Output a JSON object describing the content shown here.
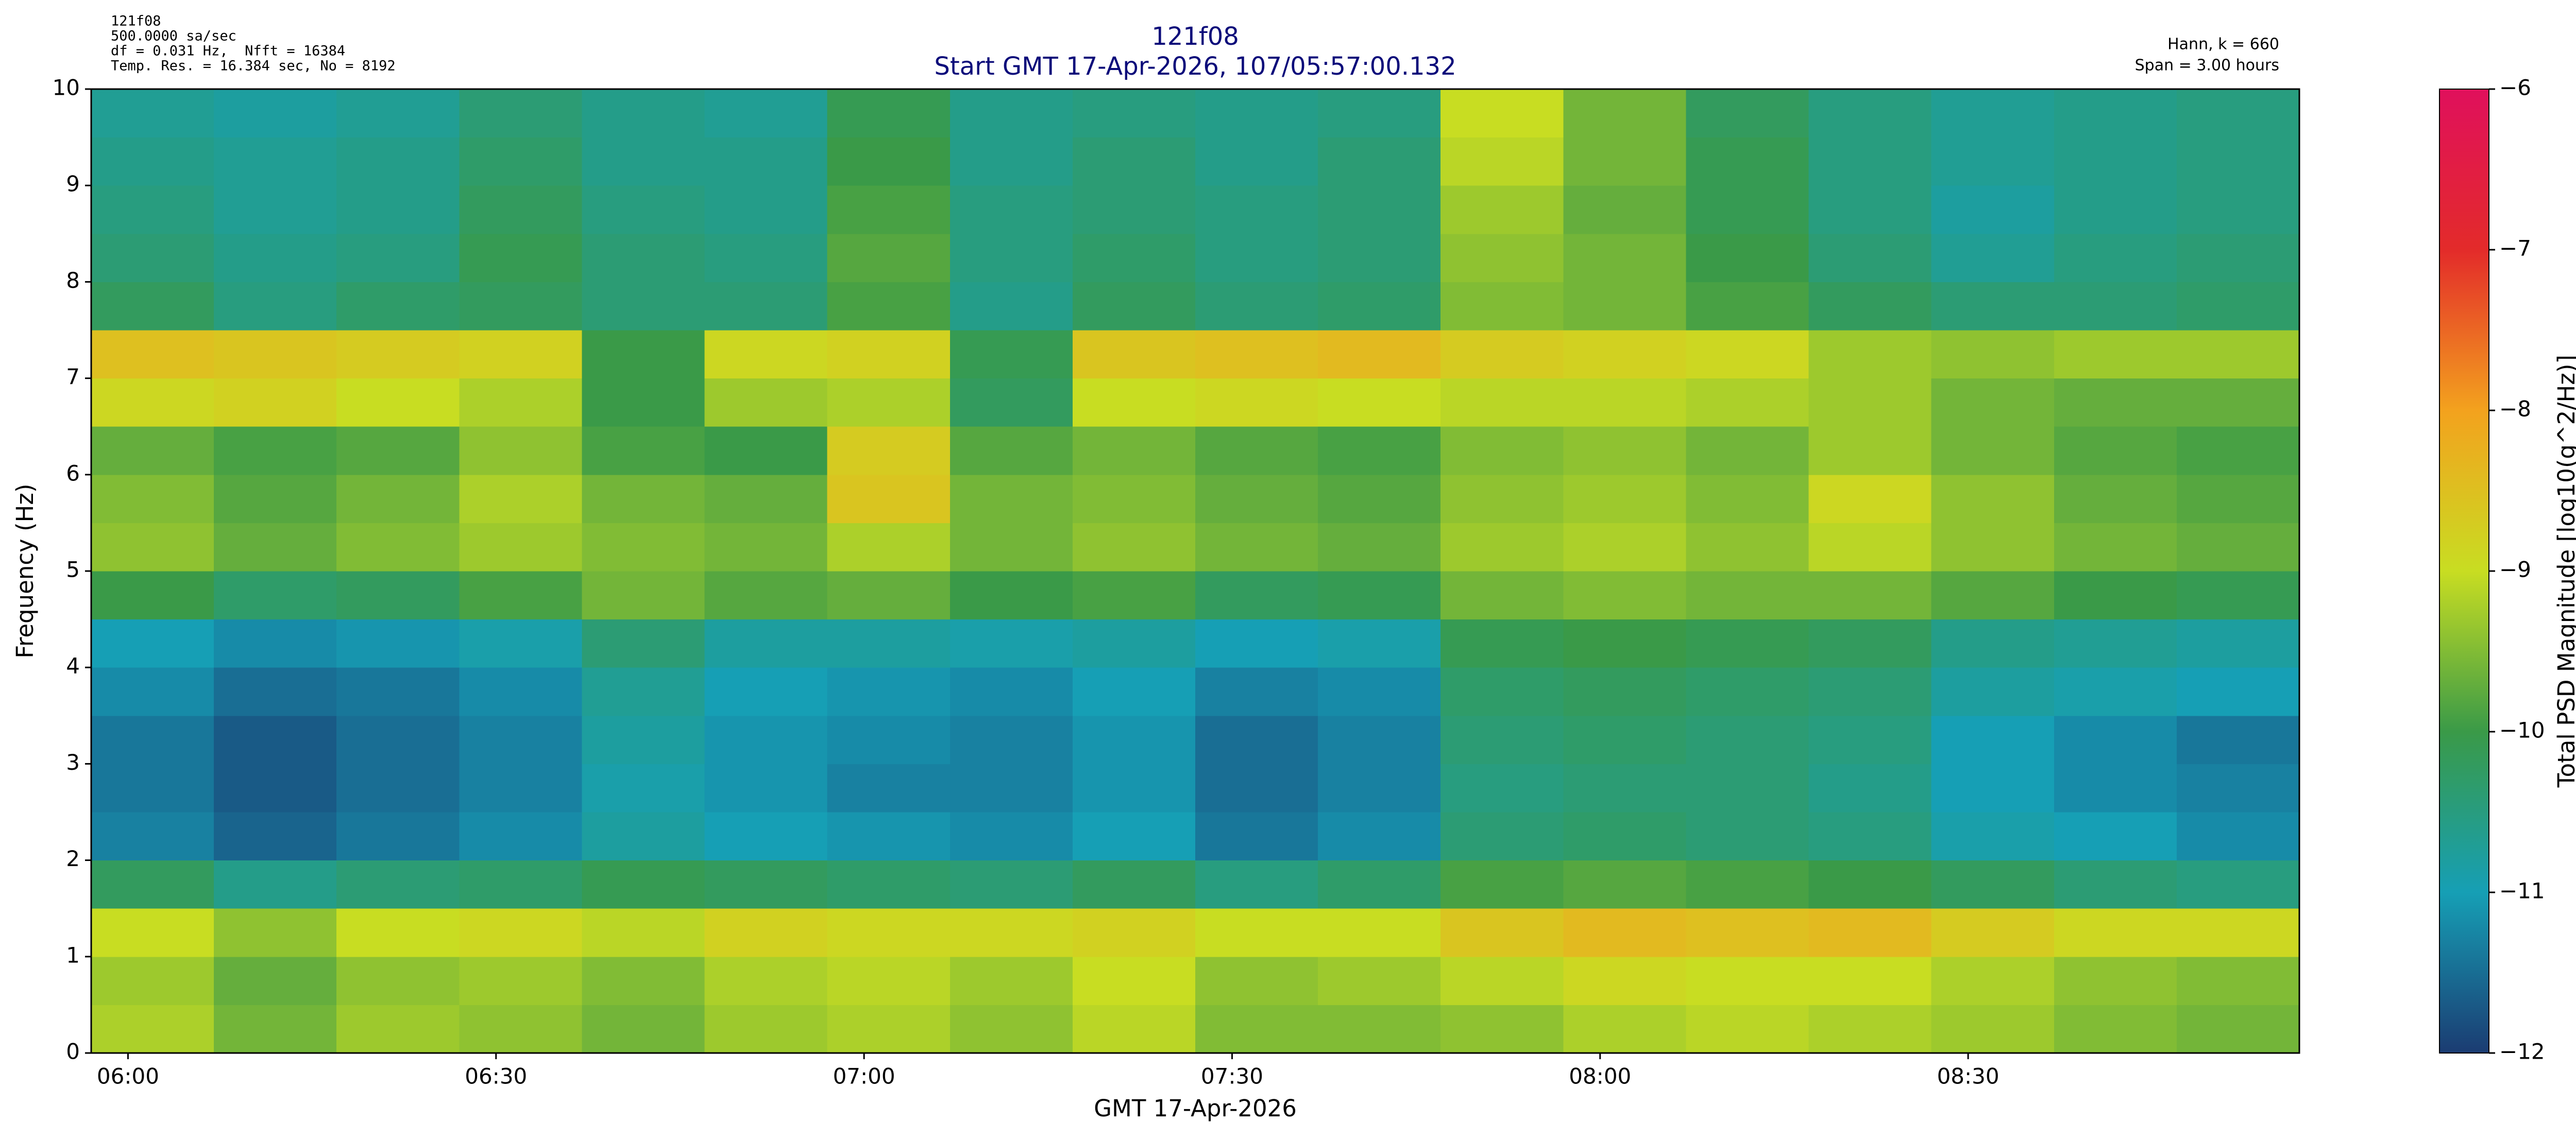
{
  "chart_data": {
    "type": "heatmap",
    "title": "121f08",
    "subtitle": "Start GMT 17-Apr-2026, 107/05:57:00.132",
    "info_left": [
      "121f08",
      "500.0000 sa/sec",
      "df = 0.031 Hz,  Nfft = 16384",
      "Temp. Res. = 16.384 sec, No = 8192"
    ],
    "info_right": [
      "Hann, k = 660",
      "Span = 3.00 hours"
    ],
    "x_label": "GMT 17-Apr-2026",
    "y_label": "Frequency (Hz)",
    "colorbar_label": "Total PSD Magnitude [log10(g^2/Hz)]",
    "xlim": [
      0,
      180
    ],
    "xticks": [
      {
        "value": 3,
        "label": "06:00"
      },
      {
        "value": 33,
        "label": "06:30"
      },
      {
        "value": 63,
        "label": "07:00"
      },
      {
        "value": 93,
        "label": "07:30"
      },
      {
        "value": 123,
        "label": "08:00"
      },
      {
        "value": 153,
        "label": "08:30"
      }
    ],
    "ylim": [
      0,
      10
    ],
    "yticks": [
      0,
      1,
      2,
      3,
      4,
      5,
      6,
      7,
      8,
      9,
      10
    ],
    "clim": [
      -12,
      -6
    ],
    "cticks": [
      {
        "value": -12,
        "label": "−12"
      },
      {
        "value": -11,
        "label": "−11"
      },
      {
        "value": -10,
        "label": "−10"
      },
      {
        "value": -9,
        "label": "−9"
      },
      {
        "value": -8,
        "label": "−8"
      },
      {
        "value": -7,
        "label": "−7"
      },
      {
        "value": -6,
        "label": "−6"
      }
    ],
    "colormap": [
      "#1b3c72",
      "#169fb5",
      "#3a9a48",
      "#c8dd22",
      "#f3a21e",
      "#e32b2a",
      "#e0105c"
    ],
    "x": [
      5,
      15,
      25,
      35,
      45,
      55,
      65,
      75,
      85,
      95,
      105,
      115,
      125,
      135,
      145,
      155,
      165,
      175
    ],
    "y": [
      0.25,
      0.75,
      1.25,
      1.75,
      2.25,
      2.75,
      3.25,
      3.75,
      4.25,
      4.75,
      5.25,
      5.75,
      6.25,
      6.75,
      7.25,
      7.75,
      8.25,
      8.75,
      9.25,
      9.75
    ],
    "values": [
      [
        -9.2,
        -9.6,
        -9.3,
        -9.4,
        -9.6,
        -9.3,
        -9.2,
        -9.4,
        -9.1,
        -9.5,
        -9.5,
        -9.4,
        -9.2,
        -9.1,
        -9.2,
        -9.3,
        -9.5,
        -9.6
      ],
      [
        -9.3,
        -9.7,
        -9.4,
        -9.3,
        -9.5,
        -9.2,
        -9.1,
        -9.3,
        -9.0,
        -9.4,
        -9.3,
        -9.1,
        -8.9,
        -9.0,
        -9.0,
        -9.2,
        -9.4,
        -9.5
      ],
      [
        -9.0,
        -9.4,
        -9.0,
        -8.9,
        -9.1,
        -8.8,
        -8.9,
        -8.9,
        -8.8,
        -9.0,
        -9.0,
        -8.6,
        -8.4,
        -8.5,
        -8.4,
        -8.7,
        -8.9,
        -8.9
      ],
      [
        -10.2,
        -10.6,
        -10.4,
        -10.3,
        -10.1,
        -10.2,
        -10.3,
        -10.4,
        -10.2,
        -10.5,
        -10.3,
        -9.9,
        -9.8,
        -9.9,
        -10.0,
        -10.2,
        -10.4,
        -10.5
      ],
      [
        -11.3,
        -11.6,
        -11.4,
        -11.2,
        -10.8,
        -11.0,
        -11.1,
        -11.2,
        -11.0,
        -11.4,
        -11.2,
        -10.4,
        -10.3,
        -10.4,
        -10.5,
        -10.9,
        -11.0,
        -11.2
      ],
      [
        -11.4,
        -11.7,
        -11.5,
        -11.3,
        -10.9,
        -11.1,
        -11.3,
        -11.3,
        -11.1,
        -11.5,
        -11.3,
        -10.5,
        -10.4,
        -10.4,
        -10.6,
        -11.0,
        -11.2,
        -11.3
      ],
      [
        -11.4,
        -11.7,
        -11.5,
        -11.3,
        -10.8,
        -11.1,
        -11.2,
        -11.3,
        -11.1,
        -11.5,
        -11.3,
        -10.4,
        -10.3,
        -10.4,
        -10.5,
        -11.0,
        -11.2,
        -11.4
      ],
      [
        -11.2,
        -11.5,
        -11.4,
        -11.2,
        -10.7,
        -11.0,
        -11.1,
        -11.2,
        -11.0,
        -11.3,
        -11.2,
        -10.3,
        -10.2,
        -10.3,
        -10.4,
        -10.8,
        -10.9,
        -11.0
      ],
      [
        -11.0,
        -11.2,
        -11.1,
        -10.9,
        -10.4,
        -10.8,
        -10.8,
        -10.9,
        -10.8,
        -11.0,
        -10.9,
        -10.1,
        -10.0,
        -10.1,
        -10.2,
        -10.6,
        -10.7,
        -10.8
      ],
      [
        -10.0,
        -10.3,
        -10.2,
        -9.9,
        -9.6,
        -9.8,
        -9.7,
        -10.0,
        -9.9,
        -10.2,
        -10.1,
        -9.6,
        -9.5,
        -9.6,
        -9.6,
        -9.8,
        -10.0,
        -10.1
      ],
      [
        -9.4,
        -9.7,
        -9.5,
        -9.3,
        -9.5,
        -9.6,
        -9.2,
        -9.6,
        -9.4,
        -9.6,
        -9.7,
        -9.3,
        -9.2,
        -9.4,
        -9.1,
        -9.4,
        -9.6,
        -9.7
      ],
      [
        -9.5,
        -9.8,
        -9.6,
        -9.2,
        -9.6,
        -9.7,
        -8.6,
        -9.6,
        -9.5,
        -9.7,
        -9.8,
        -9.4,
        -9.3,
        -9.5,
        -8.9,
        -9.4,
        -9.7,
        -9.8
      ],
      [
        -9.7,
        -9.9,
        -9.8,
        -9.4,
        -9.9,
        -10.0,
        -8.7,
        -9.8,
        -9.6,
        -9.8,
        -9.9,
        -9.5,
        -9.4,
        -9.6,
        -9.3,
        -9.6,
        -9.8,
        -9.9
      ],
      [
        -8.9,
        -8.8,
        -9.0,
        -9.2,
        -10.0,
        -9.3,
        -9.2,
        -10.2,
        -9.0,
        -8.9,
        -9.0,
        -9.1,
        -9.1,
        -9.2,
        -9.3,
        -9.6,
        -9.7,
        -9.7
      ],
      [
        -8.5,
        -8.6,
        -8.7,
        -8.8,
        -10.0,
        -8.9,
        -8.8,
        -10.1,
        -8.6,
        -8.5,
        -8.4,
        -8.7,
        -8.8,
        -8.9,
        -9.3,
        -9.4,
        -9.3,
        -9.3
      ],
      [
        -10.2,
        -10.5,
        -10.3,
        -10.2,
        -10.4,
        -10.4,
        -9.9,
        -10.6,
        -10.2,
        -10.4,
        -10.3,
        -9.5,
        -9.6,
        -9.9,
        -10.2,
        -10.4,
        -10.4,
        -10.3
      ],
      [
        -10.4,
        -10.6,
        -10.5,
        -10.1,
        -10.4,
        -10.5,
        -9.8,
        -10.5,
        -10.3,
        -10.5,
        -10.4,
        -9.4,
        -9.6,
        -10.0,
        -10.4,
        -10.7,
        -10.5,
        -10.4
      ],
      [
        -10.5,
        -10.7,
        -10.6,
        -10.2,
        -10.5,
        -10.6,
        -9.9,
        -10.5,
        -10.4,
        -10.5,
        -10.4,
        -9.3,
        -9.7,
        -10.1,
        -10.5,
        -10.8,
        -10.6,
        -10.5
      ],
      [
        -10.6,
        -10.7,
        -10.6,
        -10.3,
        -10.6,
        -10.6,
        -10.0,
        -10.6,
        -10.4,
        -10.6,
        -10.4,
        -9.1,
        -9.6,
        -10.1,
        -10.5,
        -10.7,
        -10.6,
        -10.5
      ],
      [
        -10.7,
        -10.8,
        -10.7,
        -10.4,
        -10.6,
        -10.7,
        -10.1,
        -10.6,
        -10.5,
        -10.6,
        -10.5,
        -9.0,
        -9.6,
        -10.2,
        -10.5,
        -10.7,
        -10.6,
        -10.5
      ]
    ]
  }
}
